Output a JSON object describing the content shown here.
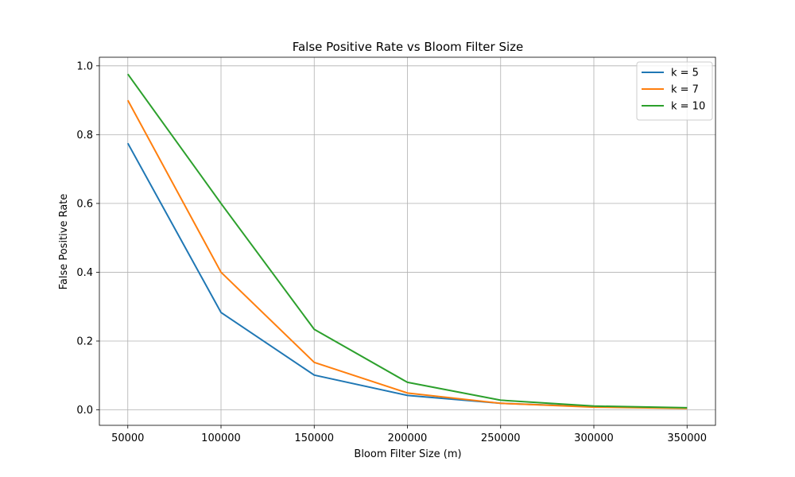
{
  "chart_data": {
    "type": "line",
    "title": "False Positive Rate vs Bloom Filter Size",
    "xlabel": "Bloom Filter Size (m)",
    "ylabel": "False Positive Rate",
    "x": [
      50000,
      100000,
      150000,
      200000,
      250000,
      300000,
      350000
    ],
    "x_ticks": [
      "50000",
      "100000",
      "150000",
      "200000",
      "250000",
      "300000",
      "350000"
    ],
    "y_ticks": [
      "0.0",
      "0.2",
      "0.4",
      "0.6",
      "0.8",
      "1.0"
    ],
    "xlim": [
      34750,
      365250
    ],
    "ylim": [
      -0.045,
      1.025
    ],
    "grid": true,
    "legend_position": "top-right",
    "series": [
      {
        "name": "k = 5",
        "color": "#1f77b4",
        "values": [
          0.775,
          0.283,
          0.101,
          0.042,
          0.019,
          0.009,
          0.005
        ]
      },
      {
        "name": "k = 7",
        "color": "#ff7f0e",
        "values": [
          0.9,
          0.4,
          0.138,
          0.049,
          0.019,
          0.008,
          0.004
        ]
      },
      {
        "name": "k = 10",
        "color": "#2ca02c",
        "values": [
          0.976,
          0.6,
          0.234,
          0.08,
          0.028,
          0.011,
          0.006
        ]
      }
    ]
  }
}
